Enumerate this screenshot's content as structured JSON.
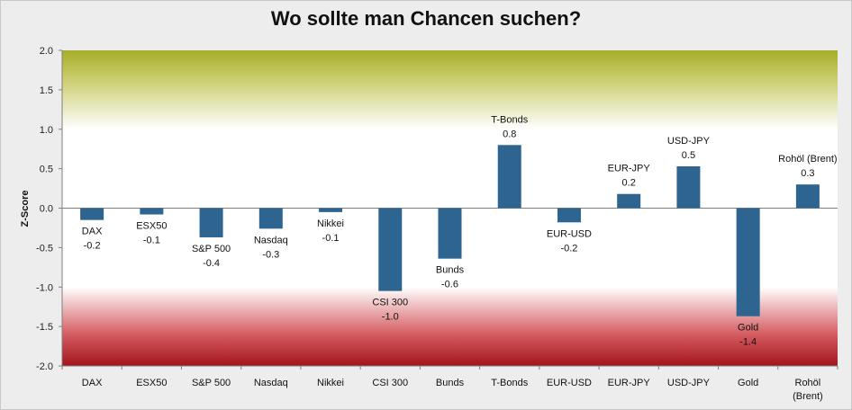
{
  "chart_data": {
    "type": "bar",
    "title": "Wo sollte man Chancen suchen?",
    "ylabel": "Z-Score",
    "xlabel": "",
    "ylim": [
      -2.0,
      2.0
    ],
    "yticks": [
      "2.0",
      "1.5",
      "1.0",
      "0.5",
      "0.0",
      "-0.5",
      "-1.0",
      "-1.5",
      "-2.0"
    ],
    "categories": [
      "DAX",
      "ESX50",
      "S&P 500",
      "Nasdaq",
      "Nikkei",
      "CSI 300",
      "Bunds",
      "T-Bonds",
      "EUR-USD",
      "EUR-JPY",
      "USD-JPY",
      "Gold",
      "Rohöl (Brent)"
    ],
    "values": [
      -0.15,
      -0.08,
      -0.37,
      -0.26,
      -0.05,
      -1.05,
      -0.64,
      0.8,
      -0.18,
      0.18,
      0.53,
      -1.37,
      0.3
    ],
    "data_labels": [
      "-0.2",
      "-0.1",
      "-0.4",
      "-0.3",
      "-0.1",
      "-1.0",
      "-0.6",
      "0.8",
      "-0.2",
      "0.2",
      "0.5",
      "-1.4",
      "0.3"
    ],
    "bar_color": "#2e6590",
    "background_bands": "green gradient above 1.0, white between -1.0 and 1.0, red gradient below -1.0",
    "colors": {
      "green": "#a6ad28",
      "red": "#a3141c"
    },
    "legend": "none",
    "grid": false
  }
}
